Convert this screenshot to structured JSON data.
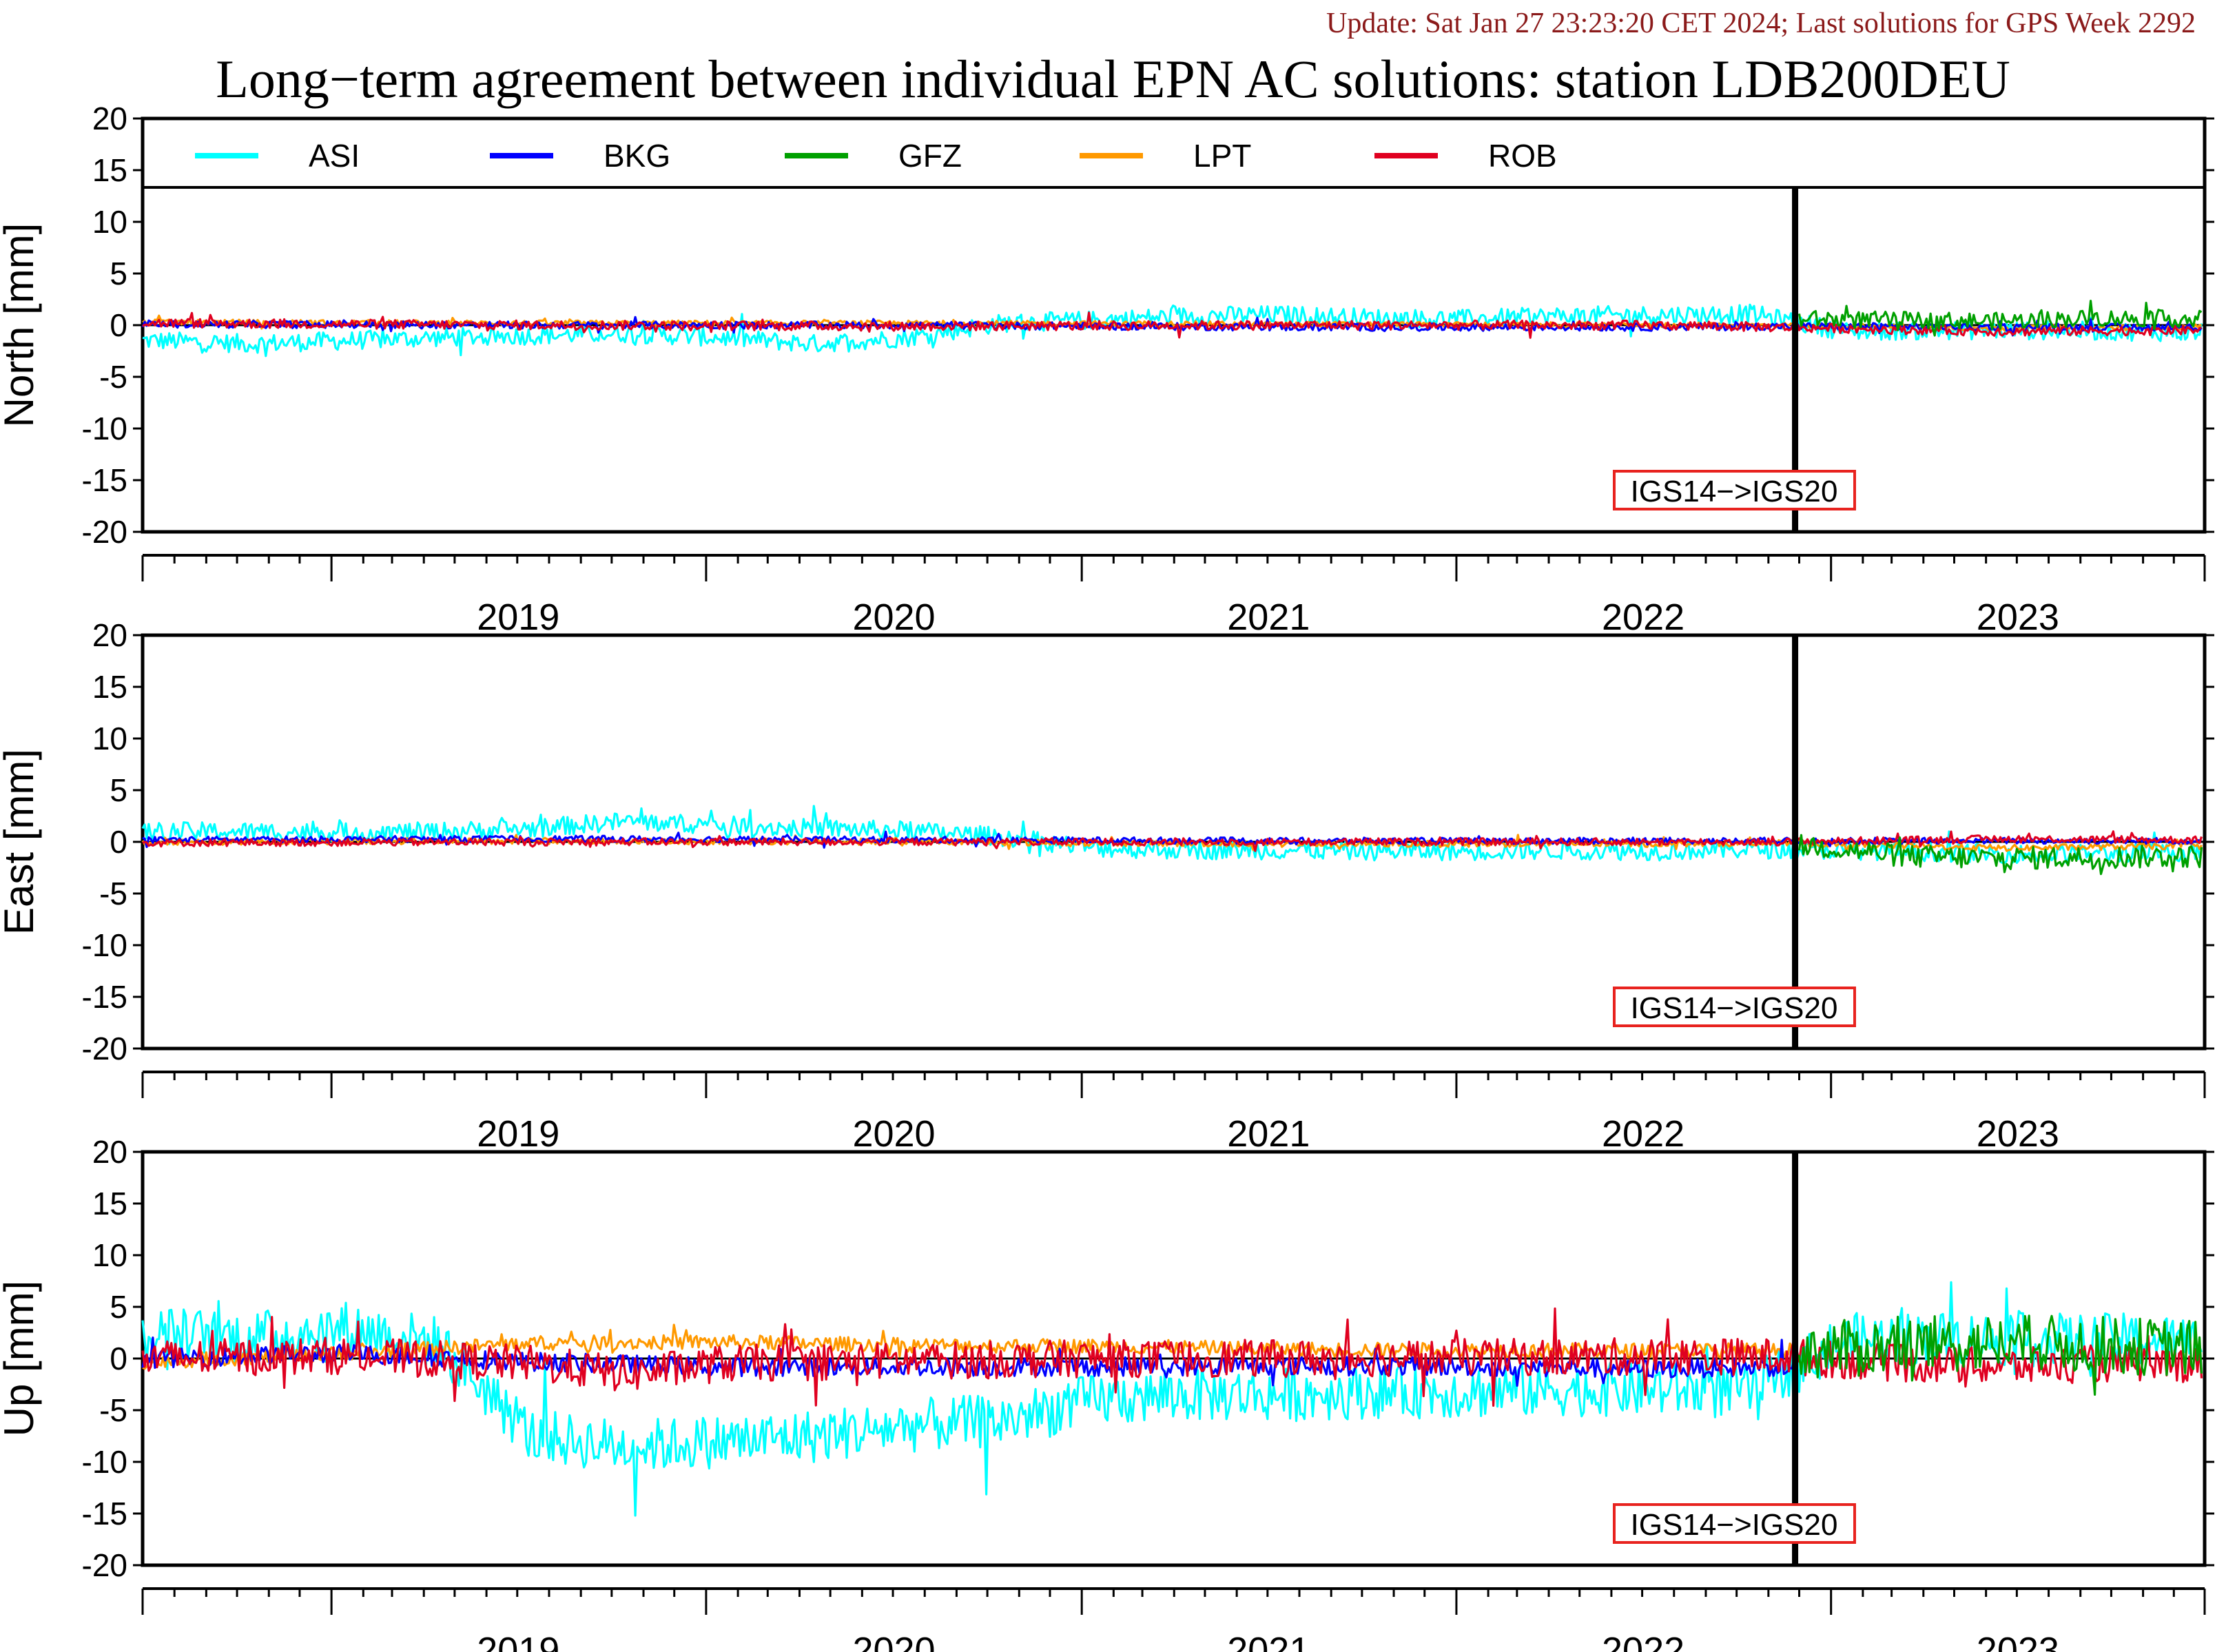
{
  "header": {
    "update_note": "Update: Sat Jan 27 23:23:20 CET 2024; Last solutions for GPS Week 2292",
    "update_color": "#8b1a1a"
  },
  "chart_data": {
    "type": "line",
    "title": "Long−term agreement between individual EPN AC solutions: station LDB200DEU",
    "x_tick_labels": [
      "2019",
      "2020",
      "2021",
      "2022",
      "2023"
    ],
    "x_range": [
      "2018-07-01",
      "2023-12-31"
    ],
    "reference_frame_change": {
      "date": "2022-11-27",
      "label": "IGS14−>IGS20",
      "label_color": "#e8231f"
    },
    "legend": {
      "placement": "top",
      "entries": [
        "ASI",
        "BKG",
        "GFZ",
        "LPT",
        "ROB"
      ]
    },
    "series_colors": {
      "ASI": "#00ffff",
      "BKG": "#0000ff",
      "GFZ": "#00a000",
      "LPT": "#ff9900",
      "ROB": "#e00020"
    },
    "panels": [
      {
        "ylabel": "North [mm]",
        "ylim": [
          -20,
          20
        ],
        "y_ticks": [
          20,
          15,
          10,
          5,
          0,
          -5,
          -10,
          -15,
          -20
        ],
        "series": [
          {
            "name": "ASI",
            "x": [
              "2018-07",
              "2018-10",
              "2019-01",
              "2019-04",
              "2019-07",
              "2019-10",
              "2020-01",
              "2020-04",
              "2020-07",
              "2020-10",
              "2021-01",
              "2021-04",
              "2021-07",
              "2021-10",
              "2022-01",
              "2022-04",
              "2022-07",
              "2022-10",
              "2023-01",
              "2023-04",
              "2023-07",
              "2023-10",
              "2023-12"
            ],
            "values": [
              -1.5,
              -1.8,
              -1.5,
              -1.2,
              -1.0,
              -0.8,
              -1.2,
              -1.8,
              -1.2,
              0.2,
              0.5,
              0.9,
              1.0,
              0.7,
              0.6,
              0.9,
              1.0,
              1.1,
              -0.6,
              -0.5,
              -0.5,
              -0.6,
              -0.7
            ]
          },
          {
            "name": "BKG",
            "x": [
              "2018-07",
              "2019-07",
              "2020-07",
              "2021-07",
              "2022-07",
              "2022-11",
              "2023-06",
              "2023-12"
            ],
            "values": [
              0.1,
              0.0,
              0.0,
              -0.2,
              -0.2,
              -0.1,
              -0.2,
              -0.2
            ]
          },
          {
            "name": "GFZ",
            "x": [
              "2022-12",
              "2023-03",
              "2023-06",
              "2023-09",
              "2023-12"
            ],
            "values": [
              0.6,
              0.5,
              0.4,
              0.7,
              0.6
            ]
          },
          {
            "name": "LPT",
            "x": [
              "2018-07",
              "2019-07",
              "2020-07",
              "2021-07",
              "2022-07",
              "2022-11",
              "2023-06",
              "2023-12"
            ],
            "values": [
              0.3,
              0.2,
              0.2,
              0.1,
              0.0,
              0.0,
              -0.3,
              -0.2
            ]
          },
          {
            "name": "ROB",
            "x": [
              "2018-07",
              "2019-07",
              "2020-07",
              "2021-07",
              "2022-07",
              "2022-11",
              "2023-06",
              "2023-12"
            ],
            "values": [
              0.2,
              0.0,
              -0.1,
              0.0,
              0.0,
              -0.2,
              -0.6,
              -0.5
            ]
          }
        ]
      },
      {
        "ylabel": "East [mm]",
        "ylim": [
          -20,
          20
        ],
        "y_ticks": [
          20,
          15,
          10,
          5,
          0,
          -5,
          -10,
          -15,
          -20
        ],
        "series": [
          {
            "name": "ASI",
            "x": [
              "2018-07",
              "2018-10",
              "2019-01",
              "2019-04",
              "2019-07",
              "2019-10",
              "2020-01",
              "2020-04",
              "2020-07",
              "2020-10",
              "2021-01",
              "2021-04",
              "2021-07",
              "2021-10",
              "2022-01",
              "2022-04",
              "2022-07",
              "2022-10",
              "2023-01",
              "2023-04",
              "2023-07",
              "2023-10",
              "2023-12"
            ],
            "values": [
              1.0,
              1.0,
              0.9,
              1.0,
              1.3,
              2.0,
              1.6,
              1.3,
              1.1,
              0.5,
              -0.6,
              -0.8,
              -0.8,
              -0.9,
              -0.9,
              -0.8,
              -0.9,
              -0.7,
              -0.8,
              -1.0,
              -1.2,
              -1.1,
              -1.0
            ]
          },
          {
            "name": "BKG",
            "x": [
              "2018-07",
              "2019-07",
              "2020-07",
              "2021-07",
              "2022-07",
              "2022-11",
              "2023-06",
              "2023-12"
            ],
            "values": [
              0.2,
              0.3,
              0.2,
              0.1,
              0.1,
              0.1,
              0.1,
              0.1
            ]
          },
          {
            "name": "GFZ",
            "x": [
              "2022-12",
              "2023-03",
              "2023-06",
              "2023-09",
              "2023-12"
            ],
            "values": [
              -0.4,
              -1.4,
              -1.6,
              -1.5,
              -1.4
            ]
          },
          {
            "name": "LPT",
            "x": [
              "2018-07",
              "2019-07",
              "2020-07",
              "2021-07",
              "2022-07",
              "2022-11",
              "2023-06",
              "2023-12"
            ],
            "values": [
              0.0,
              0.1,
              0.0,
              -0.2,
              -0.2,
              -0.1,
              -0.6,
              -0.4
            ]
          },
          {
            "name": "ROB",
            "x": [
              "2018-07",
              "2019-07",
              "2020-07",
              "2021-07",
              "2022-07",
              "2022-11",
              "2023-06",
              "2023-12"
            ],
            "values": [
              -0.1,
              0.0,
              0.0,
              0.0,
              0.0,
              0.0,
              0.3,
              0.2
            ]
          }
        ]
      },
      {
        "ylabel": "Up [mm]",
        "ylim": [
          -20,
          20
        ],
        "y_ticks": [
          20,
          15,
          10,
          5,
          0,
          -5,
          -10,
          -15,
          -20
        ],
        "series": [
          {
            "name": "ASI",
            "x": [
              "2018-07",
              "2018-10",
              "2019-01",
              "2019-04",
              "2019-07",
              "2019-10",
              "2020-01",
              "2020-04",
              "2020-07",
              "2020-10",
              "2021-01",
              "2021-04",
              "2021-07",
              "2021-10",
              "2022-01",
              "2022-04",
              "2022-07",
              "2022-10",
              "2023-01",
              "2023-04",
              "2023-07",
              "2023-10",
              "2023-12"
            ],
            "values": [
              2.5,
              2.0,
              3.0,
              1.5,
              -7.5,
              -8.5,
              -8.0,
              -7.5,
              -6.5,
              -6.0,
              -4.0,
              -3.5,
              -3.5,
              -3.2,
              -3.2,
              -3.0,
              -3.0,
              -3.0,
              1.8,
              2.0,
              1.8,
              1.8,
              1.6
            ]
          },
          {
            "name": "BKG",
            "x": [
              "2018-07",
              "2019-01",
              "2019-07",
              "2020-01",
              "2020-07",
              "2021-01",
              "2021-07",
              "2022-01",
              "2022-07",
              "2022-11"
            ],
            "values": [
              0.0,
              0.5,
              -0.3,
              -0.8,
              -0.8,
              -0.8,
              -0.7,
              -0.8,
              -1.0,
              -0.8
            ]
          },
          {
            "name": "GFZ",
            "x": [
              "2022-12",
              "2023-03",
              "2023-06",
              "2023-09",
              "2023-12"
            ],
            "values": [
              0.8,
              1.2,
              1.5,
              1.3,
              1.0
            ]
          },
          {
            "name": "LPT",
            "x": [
              "2018-07",
              "2019-01",
              "2019-07",
              "2020-01",
              "2020-07",
              "2021-01",
              "2021-07",
              "2022-01",
              "2022-07",
              "2022-11"
            ],
            "values": [
              -0.3,
              0.5,
              1.5,
              1.6,
              1.3,
              1.2,
              0.9,
              0.8,
              0.8,
              0.8
            ]
          },
          {
            "name": "ROB",
            "x": [
              "2018-07",
              "2019-01",
              "2019-07",
              "2019-10",
              "2020-01",
              "2020-07",
              "2021-01",
              "2021-07",
              "2022-01",
              "2022-07",
              "2022-11",
              "2023-03",
              "2023-06",
              "2023-09",
              "2023-12"
            ],
            "values": [
              0.0,
              0.3,
              -0.5,
              -1.5,
              -0.5,
              -0.2,
              0.0,
              0.0,
              0.1,
              0.2,
              0.2,
              -0.5,
              -0.8,
              -0.5,
              -0.5
            ]
          }
        ]
      }
    ]
  }
}
